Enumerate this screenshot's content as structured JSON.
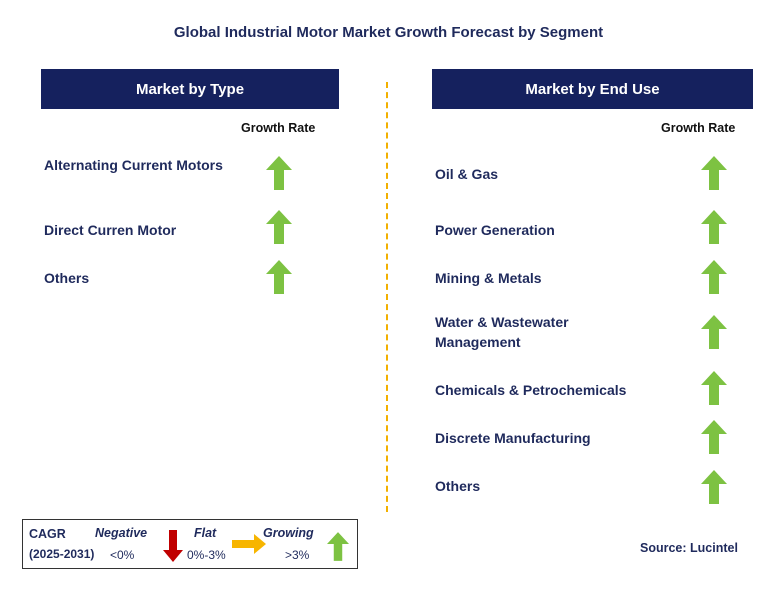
{
  "title": "Global Industrial Motor Market Growth Forecast by Segment",
  "left_panel": {
    "header": "Market by Type",
    "growth_label": "Growth Rate",
    "segments": [
      "Alternating Current Motors",
      "Direct Curren Motor",
      "Others"
    ]
  },
  "right_panel": {
    "header": "Market by End Use",
    "growth_label": "Growth Rate",
    "segments": [
      "Oil & Gas",
      "Power Generation",
      "Mining & Metals",
      "Water & Wastewater Management",
      "Chemicals & Petrochemicals",
      "Discrete Manufacturing",
      "Others"
    ]
  },
  "legend": {
    "cagr": "CAGR",
    "period": "(2025-2031)",
    "negative": {
      "label": "Negative",
      "range": "<0%"
    },
    "flat": {
      "label": "Flat",
      "range": "0%-3%"
    },
    "growing": {
      "label": "Growing",
      "range": ">3%"
    }
  },
  "source": "Source: Lucintel",
  "chart_data": {
    "type": "table",
    "title": "Global Industrial Motor Market Growth Forecast by Segment",
    "groups": [
      {
        "name": "Market by Type",
        "rows": [
          {
            "segment": "Alternating Current Motors",
            "growth": "Growing"
          },
          {
            "segment": "Direct Curren Motor",
            "growth": "Growing"
          },
          {
            "segment": "Others",
            "growth": "Growing"
          }
        ]
      },
      {
        "name": "Market by End Use",
        "rows": [
          {
            "segment": "Oil & Gas",
            "growth": "Growing"
          },
          {
            "segment": "Power Generation",
            "growth": "Growing"
          },
          {
            "segment": "Mining & Metals",
            "growth": "Growing"
          },
          {
            "segment": "Water & Wastewater Management",
            "growth": "Growing"
          },
          {
            "segment": "Chemicals & Petrochemicals",
            "growth": "Growing"
          },
          {
            "segment": "Discrete Manufacturing",
            "growth": "Growing"
          },
          {
            "segment": "Others",
            "growth": "Growing"
          }
        ]
      }
    ],
    "colors": {
      "growing": "#7dc242",
      "flat": "#f7b500",
      "negative": "#c00000",
      "header": "#15215e",
      "text": "#1f2a5c"
    }
  }
}
